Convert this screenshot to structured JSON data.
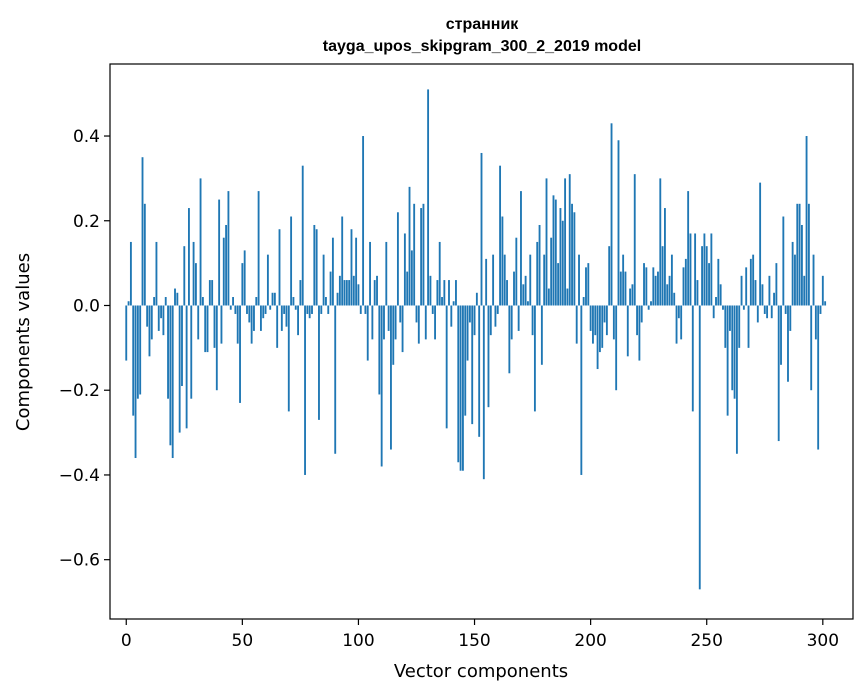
{
  "chart_data": {
    "type": "bar",
    "title_line1": "странник",
    "title_line2": "tayga_upos_skipgram_300_2_2019 model",
    "xlabel": "Vector components",
    "ylabel": "Components values",
    "xlim": [
      -7,
      313
    ],
    "ylim": [
      -0.74,
      0.57
    ],
    "xticks": [
      0,
      50,
      100,
      150,
      200,
      250,
      300
    ],
    "xtick_labels": [
      "0",
      "50",
      "100",
      "150",
      "200",
      "250",
      "300"
    ],
    "yticks": [
      -0.6,
      -0.4,
      -0.2,
      0.0,
      0.2,
      0.4
    ],
    "ytick_labels": [
      "−0.6",
      "−0.4",
      "−0.2",
      "0.0",
      "0.2",
      "0.4"
    ],
    "grid": false,
    "bar_color": "#1f77b4",
    "values": [
      -0.13,
      0.01,
      0.15,
      -0.26,
      -0.36,
      -0.22,
      -0.21,
      0.35,
      0.24,
      -0.05,
      -0.12,
      -0.08,
      0.02,
      0.15,
      -0.06,
      -0.03,
      -0.07,
      0.02,
      -0.22,
      -0.33,
      -0.36,
      0.04,
      0.03,
      -0.3,
      -0.19,
      0.14,
      -0.29,
      0.23,
      -0.22,
      0.15,
      0.1,
      -0.08,
      0.3,
      0.02,
      -0.11,
      -0.11,
      0.06,
      0.06,
      -0.1,
      -0.2,
      0.25,
      -0.09,
      0.16,
      0.19,
      0.27,
      -0.01,
      0.02,
      -0.02,
      -0.09,
      -0.23,
      0.1,
      0.13,
      -0.02,
      -0.04,
      -0.09,
      -0.06,
      0.02,
      0.27,
      -0.06,
      -0.03,
      -0.02,
      0.12,
      -0.01,
      0.03,
      0.03,
      -0.1,
      0.18,
      -0.06,
      -0.02,
      -0.05,
      -0.25,
      0.21,
      0.02,
      -0.01,
      -0.07,
      0.06,
      0.33,
      -0.4,
      -0.02,
      -0.03,
      -0.02,
      0.19,
      0.18,
      -0.27,
      -0.02,
      0.12,
      0.02,
      -0.02,
      0.08,
      0.16,
      -0.35,
      0.03,
      0.07,
      0.21,
      0.06,
      0.06,
      0.06,
      0.18,
      0.07,
      0.16,
      0.05,
      -0.02,
      0.4,
      -0.02,
      -0.13,
      0.15,
      -0.08,
      0.06,
      0.07,
      -0.21,
      -0.38,
      -0.08,
      0.15,
      -0.06,
      -0.34,
      -0.14,
      -0.08,
      0.22,
      -0.04,
      -0.11,
      0.17,
      0.08,
      0.28,
      0.13,
      0.24,
      -0.04,
      -0.09,
      0.23,
      0.24,
      -0.08,
      0.51,
      0.07,
      -0.02,
      -0.08,
      0.06,
      0.15,
      0.02,
      0.06,
      -0.29,
      0.06,
      -0.05,
      0.01,
      0.06,
      -0.37,
      -0.39,
      -0.39,
      -0.26,
      -0.13,
      -0.04,
      -0.28,
      -0.07,
      0.03,
      -0.31,
      0.36,
      -0.41,
      0.11,
      -0.24,
      -0.07,
      0.12,
      -0.05,
      -0.02,
      0.33,
      0.21,
      0.12,
      0.06,
      -0.16,
      -0.08,
      0.08,
      0.16,
      -0.06,
      0.27,
      0.05,
      0.07,
      0.01,
      0.12,
      -0.07,
      -0.25,
      0.15,
      0.19,
      -0.14,
      0.12,
      0.3,
      0.04,
      0.16,
      0.26,
      0.25,
      0.1,
      0.23,
      0.2,
      0.3,
      0.04,
      0.31,
      0.24,
      0.22,
      -0.09,
      0.12,
      -0.4,
      0.02,
      0.09,
      0.1,
      -0.06,
      -0.09,
      -0.07,
      -0.15,
      -0.11,
      -0.1,
      -0.04,
      -0.07,
      0.14,
      0.43,
      -0.08,
      -0.2,
      0.39,
      0.08,
      0.12,
      0.08,
      -0.12,
      0.04,
      0.05,
      0.31,
      -0.07,
      -0.13,
      -0.04,
      0.1,
      0.09,
      -0.01,
      0.01,
      0.09,
      0.07,
      0.08,
      0.3,
      0.14,
      0.23,
      0.05,
      0.07,
      0.12,
      0.03,
      -0.09,
      -0.03,
      -0.08,
      0.09,
      0.11,
      0.27,
      0.17,
      -0.25,
      0.17,
      0.06,
      -0.67,
      0.14,
      0.17,
      0.14,
      0.1,
      0.17,
      -0.03,
      0.02,
      0.11,
      0.05,
      -0.01,
      -0.1,
      -0.26,
      -0.06,
      -0.2,
      -0.22,
      -0.35,
      -0.1,
      0.07,
      -0.01,
      0.09,
      -0.1,
      0.11,
      0.12,
      0.06,
      -0.04,
      0.29,
      0.05,
      -0.02,
      -0.03,
      0.07,
      -0.03,
      0.03,
      0.1,
      -0.32,
      -0.14,
      0.21,
      -0.02,
      -0.18,
      -0.06,
      0.15,
      0.12,
      0.24,
      0.24,
      0.19,
      0.07,
      0.4,
      0.24,
      -0.2,
      0.12,
      -0.08,
      -0.34,
      -0.02,
      0.07,
      0.01
    ]
  }
}
